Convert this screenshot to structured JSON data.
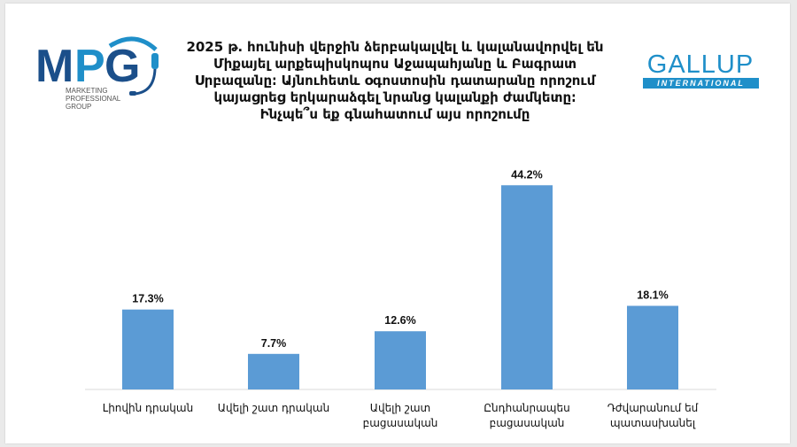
{
  "title_lines": [
    "2025 թ․ հունիսի վերջին ձերբակալվել և կալանավորվել են",
    "Միքայել արքեպիսկոպոս Աջապահյանը և Բագրատ",
    "Սրբազանը։ Այնուհետև օգոստոսին դատարանը որոշում",
    "կայացրեց երկարաձգել նրանց կալանքի ժամկետը։",
    "Ինչպե՞ս եք գնահատում այս որոշումը"
  ],
  "logos": {
    "mpg": {
      "text": "MPG",
      "sub_lines": [
        "MARKETING",
        "PROFESSIONAL",
        "GROUP"
      ],
      "colors": {
        "m": "#1b4f8a",
        "p": "#1f8fc9",
        "g": "#1b4f8a"
      },
      "icon": "headset-icon"
    },
    "gallup": {
      "name": "GALLUP",
      "sub": "INTERNATIONAL",
      "color": "#1f8fc9"
    }
  },
  "chart_data": {
    "type": "bar",
    "title": "2025 թ․ հունիսի վերջին ձերբակալվել և կալանավորվել են Միքայել արքեպիսկոպոս Աջապահյանը և Բագրատ Սրբազանը։ Այնուհետև օգոստոսին դատարանը որոշում կայացրեց երկարաձգել նրանց կալանքի ժամկետը։ Ինչպե՞ս եք գնահատում այս որոշումը",
    "categories": [
      [
        "Լիովին դրական"
      ],
      [
        "Ավելի շատ դրական"
      ],
      [
        "Ավելի շատ",
        "բացասական"
      ],
      [
        "Ընդհանրապես",
        "բացասական"
      ],
      [
        "Դժվարանում եմ",
        "պատասխանել"
      ]
    ],
    "values": [
      17.3,
      7.7,
      12.6,
      44.2,
      18.1
    ],
    "value_labels": [
      "17.3%",
      "7.7%",
      "12.6%",
      "44.2%",
      "18.1%"
    ],
    "ylim": [
      0,
      50
    ],
    "bar_color": "#5b9bd5",
    "axis_color": "#d9d9d9",
    "grid": false,
    "legend": "none"
  }
}
